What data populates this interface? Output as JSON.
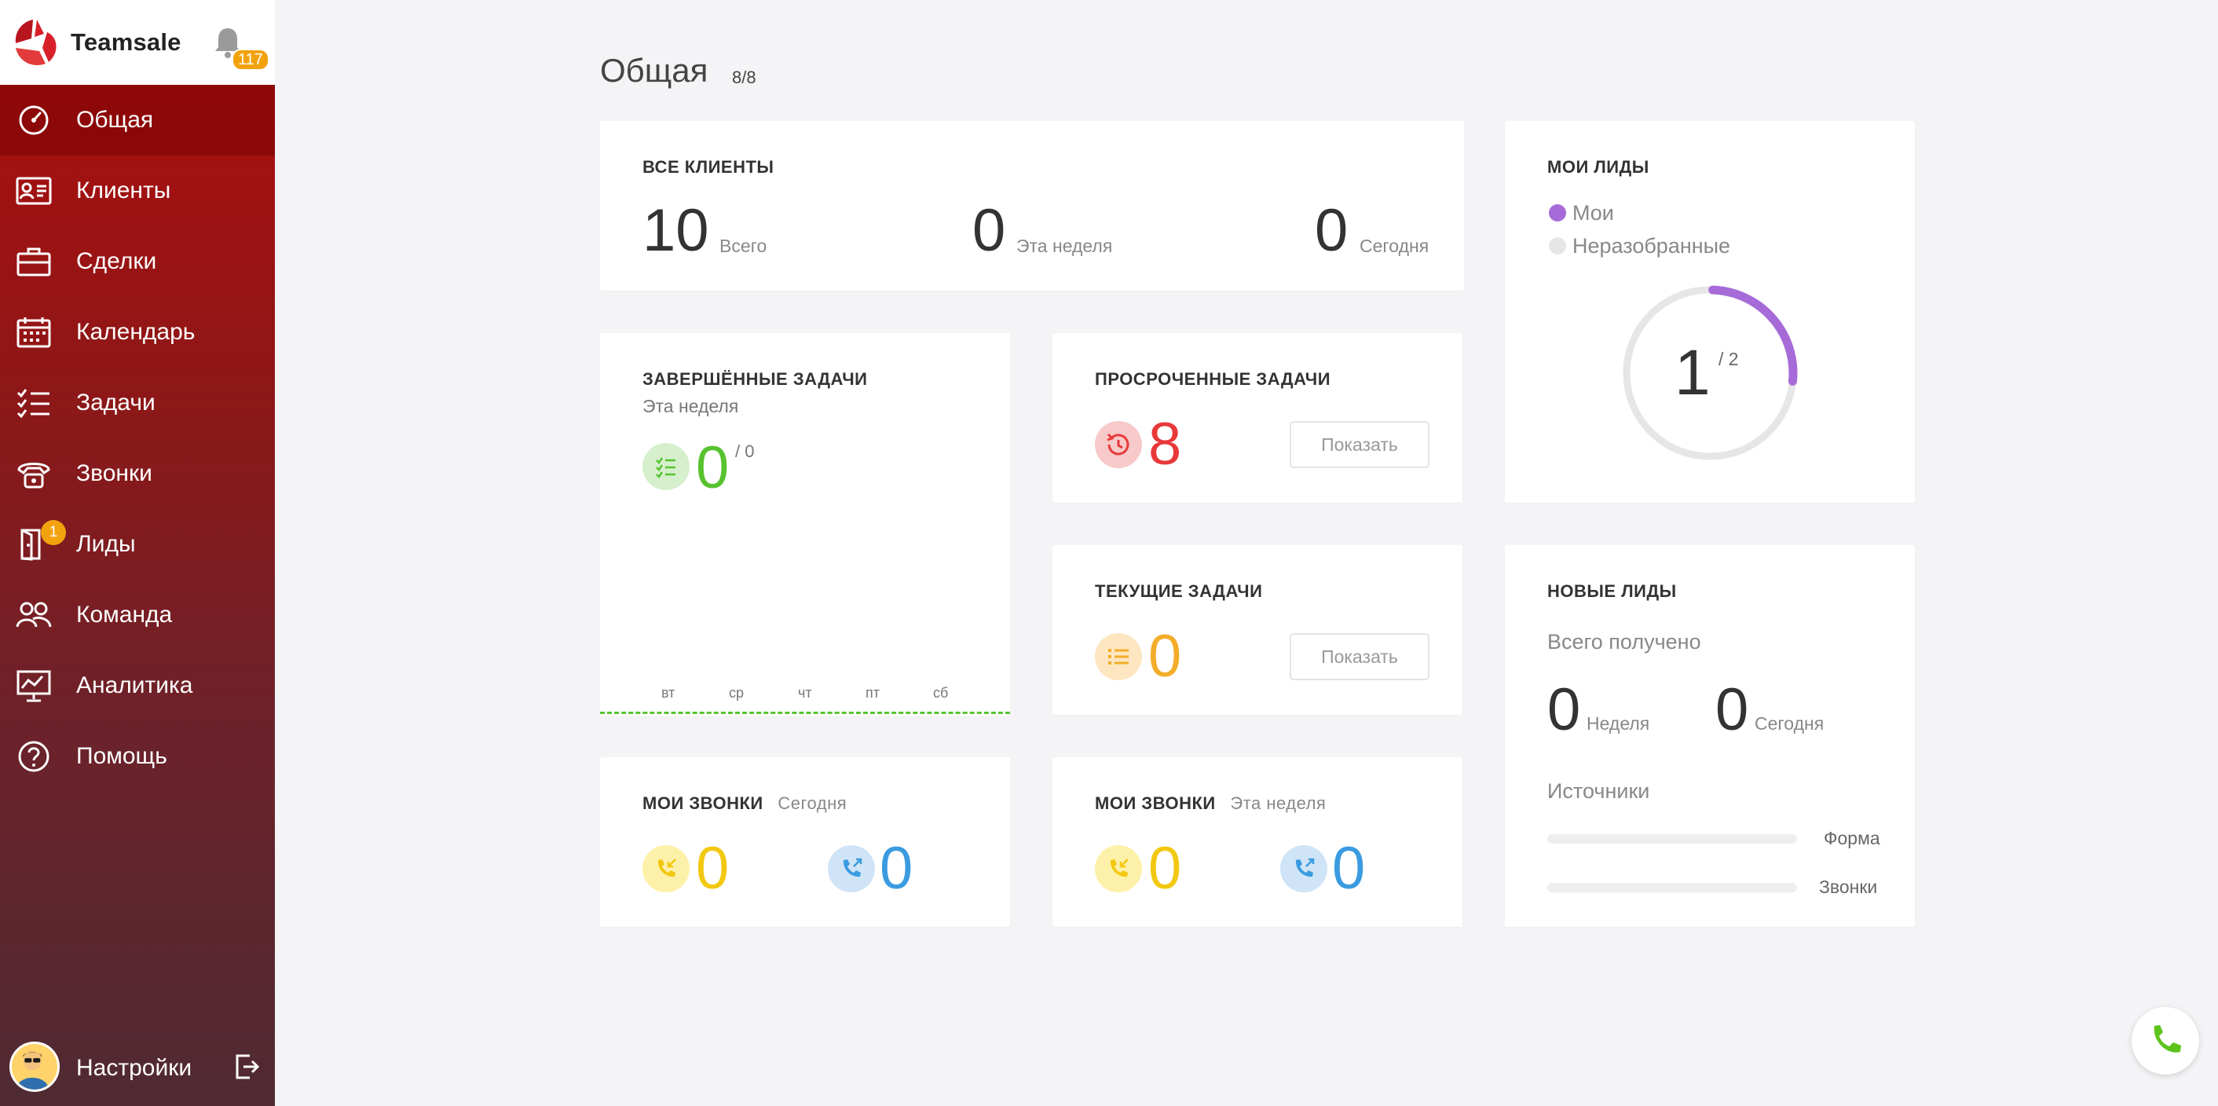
{
  "brand": {
    "name": "Teamsale",
    "notifications": "117"
  },
  "sidebar": {
    "items": [
      {
        "label": "Общая"
      },
      {
        "label": "Клиенты"
      },
      {
        "label": "Сделки"
      },
      {
        "label": "Календарь"
      },
      {
        "label": "Задачи"
      },
      {
        "label": "Звонки"
      },
      {
        "label": "Лиды",
        "badge": "1"
      },
      {
        "label": "Команда"
      },
      {
        "label": "Аналитика"
      },
      {
        "label": "Помощь"
      }
    ],
    "settings_label": "Настройки"
  },
  "header": {
    "title": "Общая",
    "count": "8/8"
  },
  "all_clients": {
    "title": "ВСЕ КЛИЕНТЫ",
    "total": "10",
    "total_label": "Всего",
    "week": "0",
    "week_label": "Эта неделя",
    "today": "0",
    "today_label": "Сегодня"
  },
  "my_leads": {
    "title": "МОИ ЛИДЫ",
    "legend_mine": "Мои",
    "legend_unsorted": "Неразобранные",
    "value": "1",
    "total": "/ 2",
    "fraction": 0.5,
    "color_mine": "#a66bd8",
    "color_unsorted": "#e6e6e6"
  },
  "completed_tasks": {
    "title": "ЗАВЕРШЁННЫЕ ЗАДАЧИ",
    "subtitle": "Эта неделя",
    "value": "0",
    "total": "/ 0",
    "days": [
      "вт",
      "ср",
      "чт",
      "пт",
      "сб"
    ]
  },
  "overdue_tasks": {
    "title": "ПРОСРОЧЕННЫЕ ЗАДАЧИ",
    "value": "8",
    "button": "Показать"
  },
  "current_tasks": {
    "title": "ТЕКУЩИЕ ЗАДАЧИ",
    "value": "0",
    "button": "Показать"
  },
  "new_leads": {
    "title": "НОВЫЕ ЛИДЫ",
    "subtitle": "Всего получено",
    "week": "0",
    "week_label": "Неделя",
    "today": "0",
    "today_label": "Сегодня",
    "sources_title": "Источники",
    "sources": [
      {
        "name": "Форма",
        "fraction": 0
      },
      {
        "name": "Звонки",
        "fraction": 0
      }
    ]
  },
  "calls_today": {
    "title": "МОИ ЗВОНКИ",
    "period": "Сегодня",
    "incoming": "0",
    "outgoing": "0"
  },
  "calls_week": {
    "title": "МОИ ЗВОНКИ",
    "period": "Эта неделя",
    "incoming": "0",
    "outgoing": "0"
  },
  "colors": {
    "overdue": "#e8393a",
    "current": "#f4ad2a",
    "completed": "#58c230",
    "incoming": "#f2c811",
    "outgoing": "#3a9be0"
  }
}
